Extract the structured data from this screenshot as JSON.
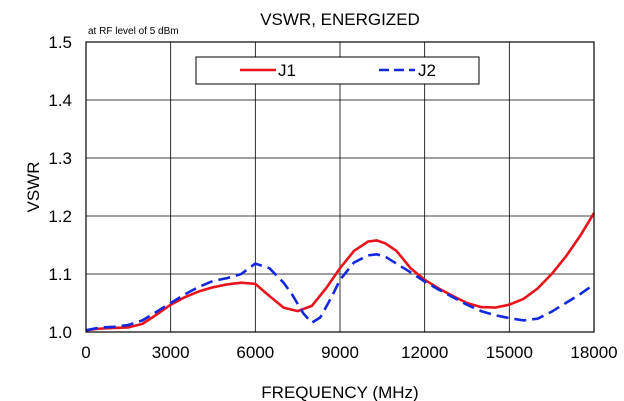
{
  "chart_data": {
    "type": "line",
    "title": "VSWR,  ENERGIZED",
    "annotation": "at RF level of 5 dBm",
    "xlabel": "FREQUENCY (MHz)",
    "ylabel": "VSWR",
    "xlim": [
      0,
      18000
    ],
    "ylim": [
      1.0,
      1.5
    ],
    "x_ticks": [
      "0",
      "3000",
      "6000",
      "9000",
      "12000",
      "15000",
      "18000"
    ],
    "y_ticks": [
      "1.0",
      "1.1",
      "1.2",
      "1.3",
      "1.4",
      "1.5"
    ],
    "grid": true,
    "legend_position": "top",
    "series": [
      {
        "name": "J1",
        "color": "#e8141c",
        "style": "solid",
        "x": [
          0,
          300,
          600,
          1000,
          1500,
          2000,
          2500,
          3000,
          3500,
          4000,
          4500,
          5000,
          5500,
          6000,
          6500,
          7000,
          7500,
          8000,
          8500,
          9000,
          9500,
          10000,
          10300,
          10600,
          11000,
          11500,
          12000,
          12500,
          13000,
          13500,
          14000,
          14500,
          15000,
          15500,
          16000,
          16500,
          17000,
          17500,
          18000
        ],
        "y": [
          1.003,
          1.005,
          1.006,
          1.007,
          1.008,
          1.014,
          1.03,
          1.047,
          1.06,
          1.07,
          1.077,
          1.082,
          1.085,
          1.083,
          1.062,
          1.042,
          1.036,
          1.045,
          1.075,
          1.11,
          1.14,
          1.156,
          1.158,
          1.153,
          1.14,
          1.11,
          1.09,
          1.075,
          1.062,
          1.05,
          1.043,
          1.042,
          1.047,
          1.057,
          1.075,
          1.1,
          1.13,
          1.165,
          1.205
        ]
      },
      {
        "name": "J2",
        "color": "#1428e0",
        "style": "dashed",
        "x": [
          0,
          300,
          600,
          1000,
          1500,
          2000,
          2500,
          3000,
          3500,
          4000,
          4500,
          5000,
          5500,
          6000,
          6500,
          7000,
          7300,
          7700,
          8000,
          8300,
          8700,
          9000,
          9500,
          10000,
          10300,
          10600,
          11000,
          11500,
          12000,
          12500,
          13000,
          13500,
          14000,
          14500,
          15000,
          15500,
          16000,
          16500,
          17000,
          17500,
          18000
        ],
        "y": [
          1.003,
          1.006,
          1.008,
          1.009,
          1.012,
          1.02,
          1.035,
          1.05,
          1.065,
          1.078,
          1.088,
          1.093,
          1.1,
          1.118,
          1.11,
          1.085,
          1.065,
          1.032,
          1.016,
          1.025,
          1.06,
          1.09,
          1.12,
          1.132,
          1.134,
          1.13,
          1.118,
          1.103,
          1.087,
          1.073,
          1.06,
          1.047,
          1.036,
          1.029,
          1.024,
          1.02,
          1.023,
          1.035,
          1.05,
          1.065,
          1.082
        ]
      }
    ]
  }
}
